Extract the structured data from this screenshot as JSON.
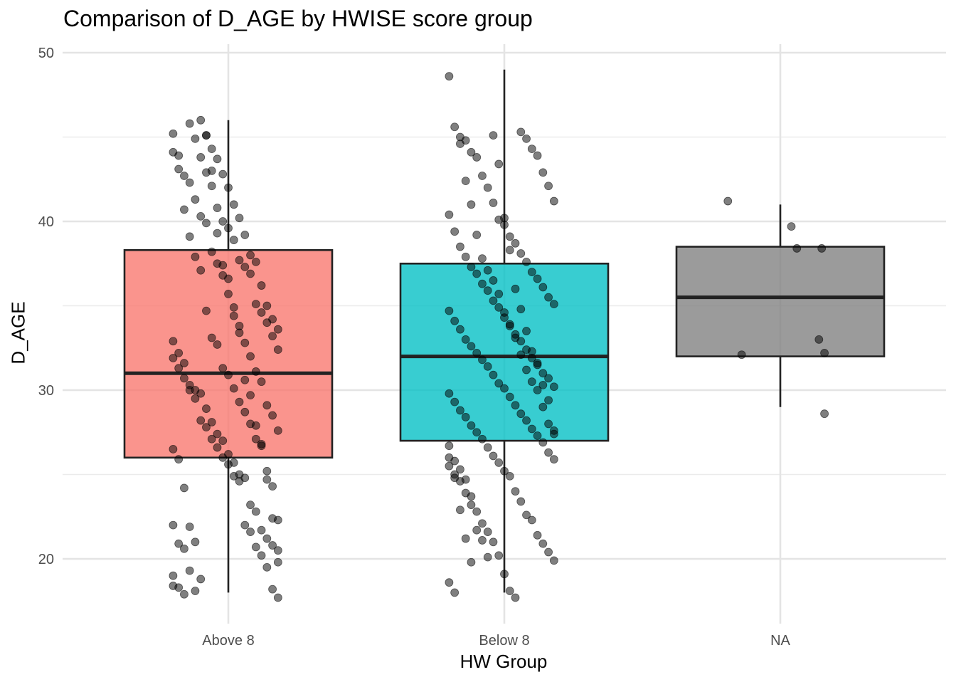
{
  "chart_data": {
    "type": "boxplot",
    "title": "Comparison of D_AGE by HWISE score group",
    "xlabel": "HW Group",
    "ylabel": "D_AGE",
    "categories": [
      "Above 8",
      "Below 8",
      "NA"
    ],
    "ylim": [
      16.2,
      50.5
    ],
    "yticks": [
      20,
      30,
      40,
      50
    ],
    "grid": true,
    "legend": "none",
    "colors": {
      "Above 8": "#F8766D",
      "Below 8": "#00BFC4",
      "NA": "#7F7F7F"
    },
    "boxes": [
      {
        "group": "Above 8",
        "min": 18.0,
        "q1": 26.0,
        "median": 31.0,
        "q3": 38.3,
        "max": 46.0
      },
      {
        "group": "Below 8",
        "min": 18.0,
        "q1": 27.0,
        "median": 32.0,
        "q3": 37.5,
        "max": 49.0
      },
      {
        "group": "NA",
        "min": 29.0,
        "q1": 32.0,
        "median": 35.5,
        "q3": 38.5,
        "max": 41.0
      }
    ],
    "points": [
      {
        "group": "NA",
        "jitter": [
          -0.19,
          -0.14,
          0.04,
          0.06,
          0.14,
          0.15,
          0.16,
          0.16
        ],
        "values": [
          41.2,
          32.1,
          39.7,
          38.4,
          33.0,
          38.4,
          32.2,
          28.6
        ]
      },
      {
        "group": "Above 8",
        "jitter": [
          -0.2,
          -0.18,
          -0.16,
          -0.14,
          -0.12,
          -0.1,
          -0.08,
          -0.06,
          -0.04,
          -0.02,
          0.0,
          0.02,
          0.04,
          0.06,
          0.08,
          0.1,
          0.12,
          0.14,
          0.16,
          0.18
        ],
        "values": [
          45.2,
          43.1,
          40.7,
          39.1,
          37.9,
          37.1,
          34.7,
          33.1,
          32.7,
          31.3,
          30.9,
          30.1,
          29.3,
          28.7,
          28.0,
          27.1,
          26.7,
          25.2,
          24.3,
          22.3,
          22.0,
          20.9,
          20.6,
          19.3,
          18.1,
          46.0,
          45.1,
          44.3,
          43.7,
          42.8,
          42.0,
          41.0,
          40.2,
          39.2,
          38.0,
          37.6,
          36.2,
          35.0,
          34.2,
          33.6,
          32.9,
          32.2,
          31.6,
          30.3,
          30.0,
          29.8,
          28.9,
          28.1,
          27.4,
          27.0,
          26.2,
          25.7,
          25.0,
          24.8,
          23.2,
          22.8,
          21.7,
          21.2,
          20.8,
          19.8,
          19.0,
          18.3,
          17.9,
          45.8,
          44.9,
          43.8,
          42.9,
          42.1,
          40.8,
          40.0,
          39.6,
          38.9,
          37.7,
          37.3,
          36.9,
          35.1,
          34.6,
          34.0,
          33.2,
          32.4,
          31.9,
          31.3,
          30.7,
          30.0,
          29.5,
          28.2,
          27.8,
          27.1,
          26.6,
          26.0,
          25.6,
          24.9,
          24.6,
          22.0,
          21.6,
          20.7,
          20.2,
          19.5,
          18.2,
          17.7,
          44.1,
          43.9,
          42.7,
          42.3,
          41.3,
          40.3,
          39.9,
          38.2,
          37.5,
          36.8,
          35.7,
          34.9,
          33.8,
          32.8,
          32.0,
          31.1,
          30.5,
          29.1,
          28.5,
          27.6,
          26.5,
          25.9,
          24.2,
          21.9,
          21.0,
          18.8,
          45.1,
          43.0,
          39.3,
          37.4,
          36.6,
          34.4,
          33.4,
          30.6,
          29.7,
          27.9,
          26.8,
          24.7,
          22.4,
          20.5,
          18.4
        ]
      },
      {
        "group": "Below 8",
        "jitter": [
          -0.2,
          -0.18,
          -0.16,
          -0.14,
          -0.12,
          -0.1,
          -0.08,
          -0.06,
          -0.04,
          -0.02,
          0.0,
          0.02,
          0.04,
          0.06,
          0.08,
          0.1,
          0.12,
          0.14,
          0.16,
          0.18
        ],
        "values": [
          48.6,
          45.6,
          45.0,
          44.8,
          44.1,
          43.8,
          42.7,
          42.0,
          41.1,
          40.1,
          39.8,
          39.1,
          38.7,
          38.1,
          37.6,
          37.0,
          36.6,
          36.1,
          35.5,
          35.1,
          34.7,
          34.1,
          33.6,
          33.0,
          32.6,
          32.2,
          31.8,
          31.4,
          30.9,
          30.4,
          30.1,
          29.6,
          29.1,
          28.6,
          28.2,
          27.7,
          27.3,
          26.9,
          26.3,
          25.9,
          25.5,
          25.0,
          24.6,
          23.9,
          23.2,
          22.8,
          22.1,
          21.6,
          21.0,
          20.2,
          19.1,
          18.1,
          17.7,
          45.3,
          44.9,
          44.3,
          43.9,
          42.9,
          42.1,
          41.2,
          40.4,
          39.4,
          38.5,
          37.9,
          37.3,
          36.9,
          36.3,
          35.9,
          35.3,
          34.9,
          34.3,
          33.8,
          33.3,
          32.9,
          32.4,
          31.9,
          31.6,
          31.0,
          30.7,
          30.2,
          29.8,
          29.3,
          28.8,
          28.4,
          27.9,
          27.5,
          27.1,
          26.6,
          26.1,
          25.7,
          25.2,
          24.9,
          24.0,
          23.4,
          22.6,
          22.3,
          21.4,
          20.9,
          20.4,
          19.9,
          18.6,
          18.0,
          44.6,
          42.4,
          41.0,
          39.2,
          37.8,
          37.1,
          36.5,
          35.7,
          34.6,
          33.9,
          33.1,
          32.1,
          31.2,
          30.5,
          30.0,
          29.0,
          28.0,
          27.4,
          26.7,
          25.8,
          25.3,
          24.7,
          23.7,
          21.7,
          21.1,
          20.1,
          45.1,
          43.4,
          40.2,
          38.3,
          36.0,
          34.8,
          33.5,
          32.3,
          31.5,
          30.3,
          29.4,
          27.6,
          26.0,
          24.8,
          22.9,
          21.2,
          19.8
        ]
      }
    ]
  }
}
